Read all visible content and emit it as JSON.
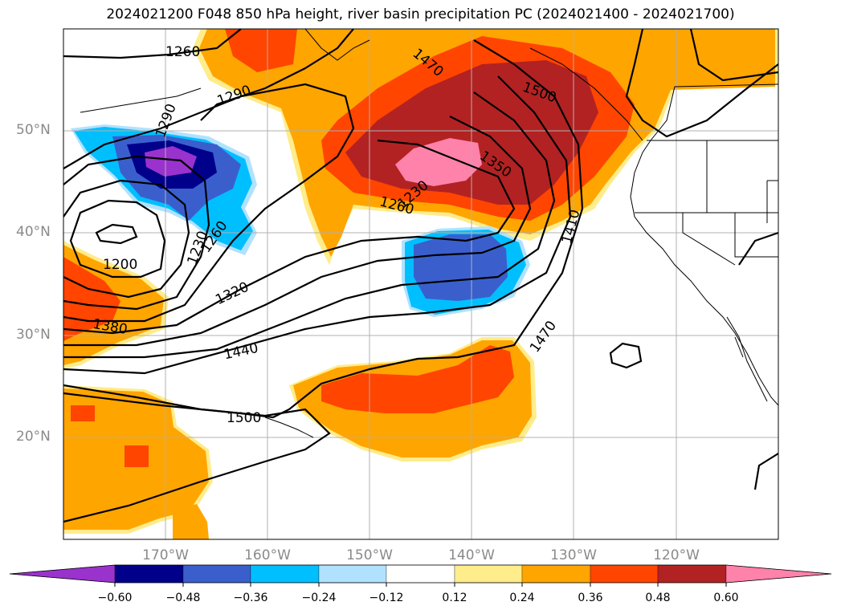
{
  "title": "2024021200 F048 850 hPa height, river basin precipitation PC (2024021400 - 2024021700)",
  "lat_labels": [
    "50°N",
    "40°N",
    "30°N",
    "20°N"
  ],
  "lon_labels": [
    "170°W",
    "160°W",
    "150°W",
    "140°W",
    "130°W",
    "120°W"
  ],
  "colorbar": {
    "ticks": [
      "−0.60",
      "−0.48",
      "−0.36",
      "−0.24",
      "−0.12",
      "0.12",
      "0.24",
      "0.36",
      "0.48",
      "0.60"
    ],
    "colors": [
      "#9a32cd",
      "#00008b",
      "#3a5fcd",
      "#00bfff",
      "#b0e2ff",
      "#ffffff",
      "#ffec8b",
      "#ffa500",
      "#ff4500",
      "#b22222",
      "#ff82ab"
    ]
  },
  "contour_labels": [
    "1260",
    "1290",
    "1290",
    "1470",
    "1500",
    "1350",
    "1230",
    "1260",
    "1410",
    "1200",
    "1230",
    "1260",
    "1320",
    "1380",
    "1440",
    "1470",
    "1500"
  ],
  "colors": {
    "land_outline": "#000000",
    "grid": "#b0b0b0",
    "contour": "#000000"
  }
}
